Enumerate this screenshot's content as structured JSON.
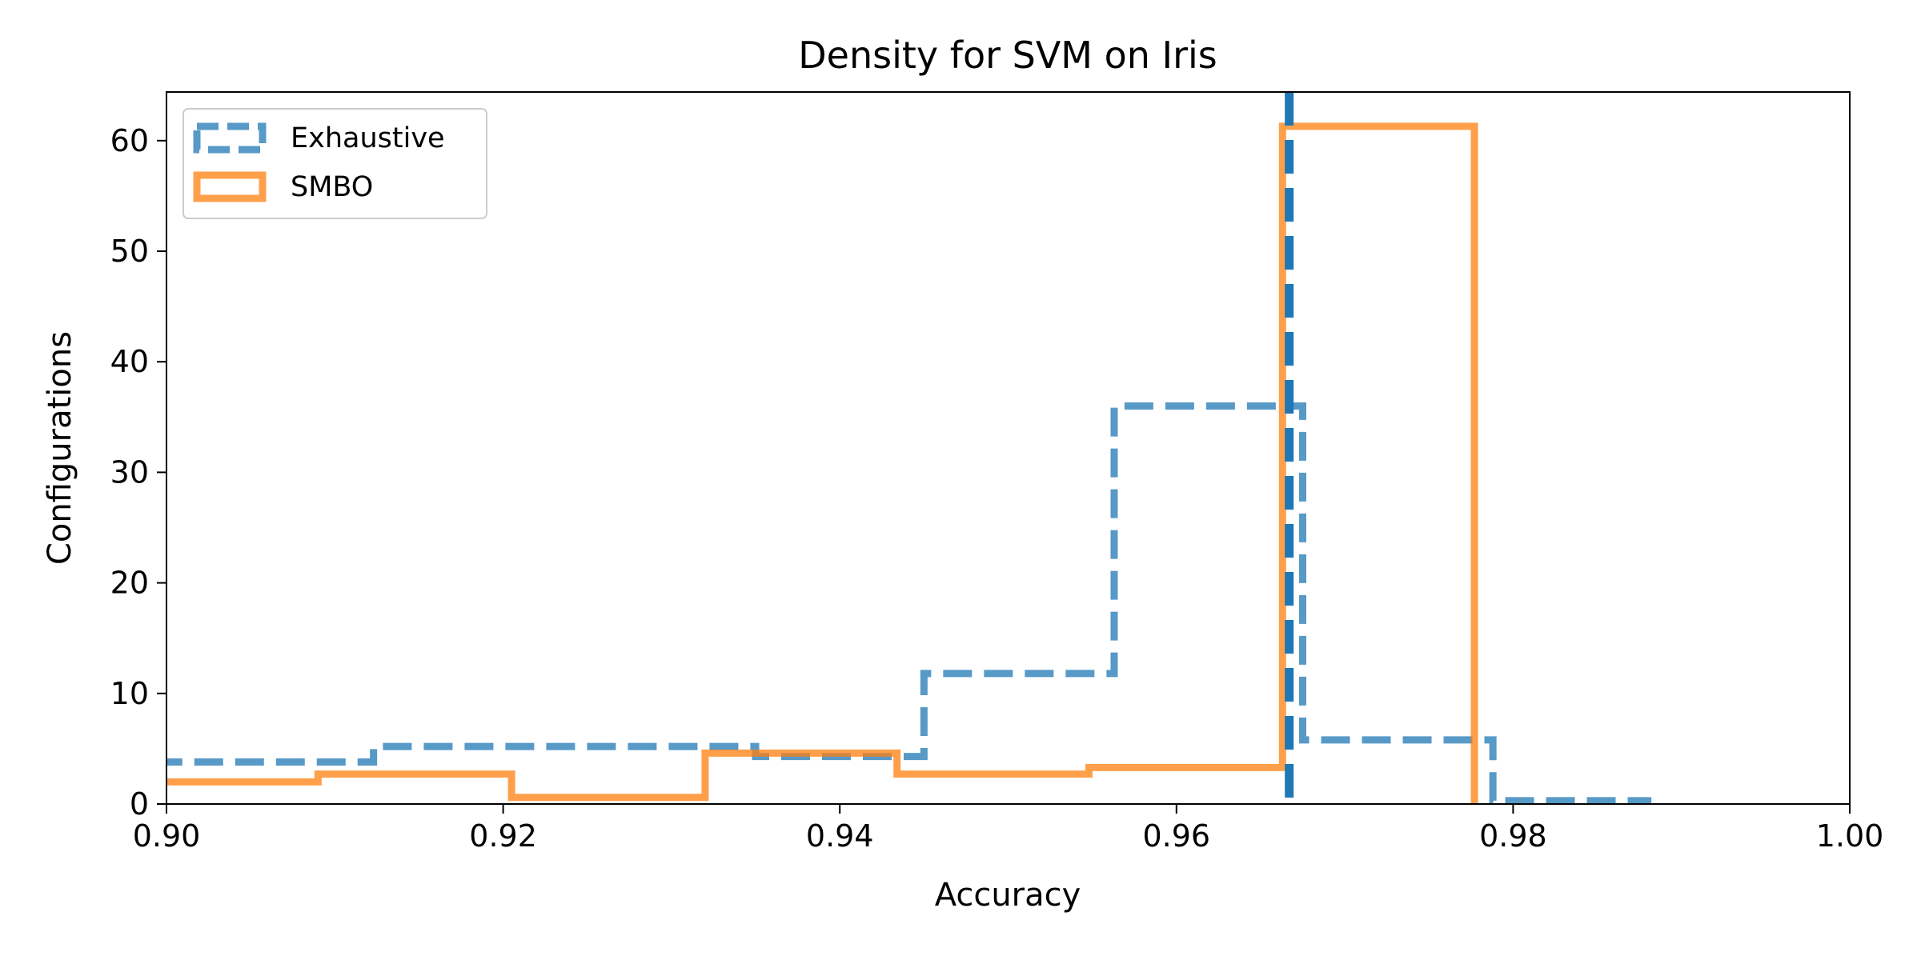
{
  "chart_data": {
    "type": "histogram",
    "title": "Density for SVM on Iris",
    "xlabel": "Accuracy",
    "ylabel": "Configurations",
    "xlim": [
      0.9,
      1.0
    ],
    "ylim": [
      0,
      64.4
    ],
    "xticks": [
      0.9,
      0.92,
      0.94,
      0.96,
      0.98,
      1.0
    ],
    "xtick_labels": [
      "0.90",
      "0.92",
      "0.94",
      "0.96",
      "0.98",
      "1.00"
    ],
    "yticks": [
      0,
      10,
      20,
      30,
      40,
      50,
      60
    ],
    "ytick_labels": [
      "0",
      "10",
      "20",
      "30",
      "40",
      "50",
      "60"
    ],
    "grid": false,
    "legend_position": "top-left",
    "series": [
      {
        "name": "Exhaustive",
        "style": "dashed-step",
        "color": "#1f77b4",
        "bin_edges": [
          0.8896,
          0.9123,
          0.935,
          0.945,
          0.9563,
          0.9675,
          0.9788,
          0.988
        ],
        "values": [
          3.8,
          5.2,
          4.3,
          11.8,
          36.0,
          5.8,
          0.3
        ]
      },
      {
        "name": "SMBO",
        "style": "solid-step",
        "color": "#ff7f0e",
        "bin_edges": [
          0.887,
          0.909,
          0.9205,
          0.932,
          0.9434,
          0.9548,
          0.9663,
          0.9777
        ],
        "values": [
          2.0,
          2.7,
          0.6,
          4.6,
          2.7,
          3.3,
          61.3
        ]
      }
    ],
    "vline": {
      "x": 0.9667,
      "style": "dashed",
      "color": "#1f77b4"
    }
  }
}
